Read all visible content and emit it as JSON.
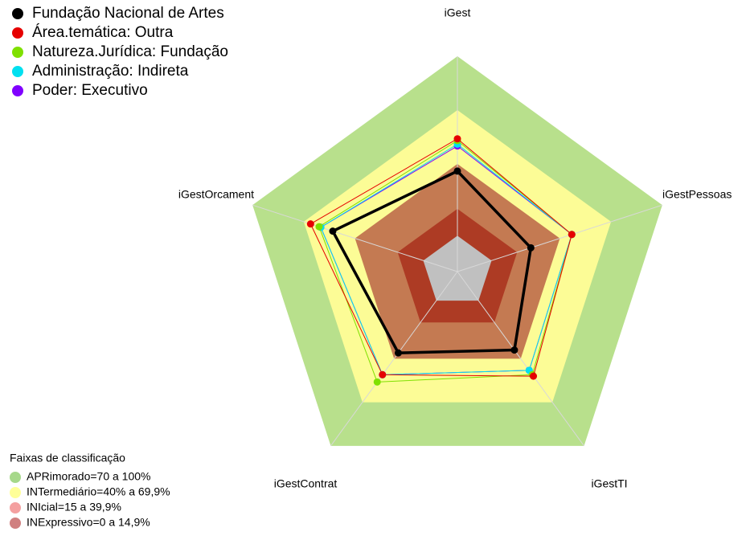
{
  "chart_data": {
    "type": "radar",
    "categories": [
      "iGest",
      "iGestPessoas",
      "iGestTI",
      "iGestContrat",
      "iGestOrcament"
    ],
    "rlim": [
      -20,
      100
    ],
    "series": [
      {
        "name": "Fundação Nacional de Artes",
        "color": "#000000",
        "values": [
          36,
          23,
          34,
          36,
          53
        ]
      },
      {
        "name": "Área.temática: Outra",
        "color": "#e60000",
        "values": [
          54,
          47,
          52,
          51,
          66
        ]
      },
      {
        "name": "Natureza.Jurídica: Fundação",
        "color": "#7fe000",
        "values": [
          53,
          47,
          51,
          56,
          61
        ]
      },
      {
        "name": "Administração: Indireta",
        "color": "#00e0f0",
        "values": [
          51,
          47,
          48,
          51,
          60
        ]
      },
      {
        "name": "Poder: Executivo",
        "color": "#8000ff",
        "values": [
          50,
          47,
          48,
          51,
          60
        ]
      }
    ],
    "bands_title": "Faixas de classificação",
    "bands": [
      {
        "label": "APRimorado=70 a 100%",
        "min": 70,
        "max": 100,
        "color": "#b8e08c",
        "legend_color": "#a6d88a"
      },
      {
        "label": "INTermediário=40% a 69,9%",
        "min": 40,
        "max": 70,
        "color": "#fcfc96",
        "legend_color": "#ffff99"
      },
      {
        "label": "INIcial=15 a 39,9%",
        "min": 15,
        "max": 40,
        "color": "#c47a52",
        "legend_color": "#f4a0a0"
      },
      {
        "label": "INExpressivo=0 a 14,9%",
        "min": 0,
        "max": 15,
        "color": "#ad3b24",
        "legend_color": "#d08080"
      }
    ]
  }
}
